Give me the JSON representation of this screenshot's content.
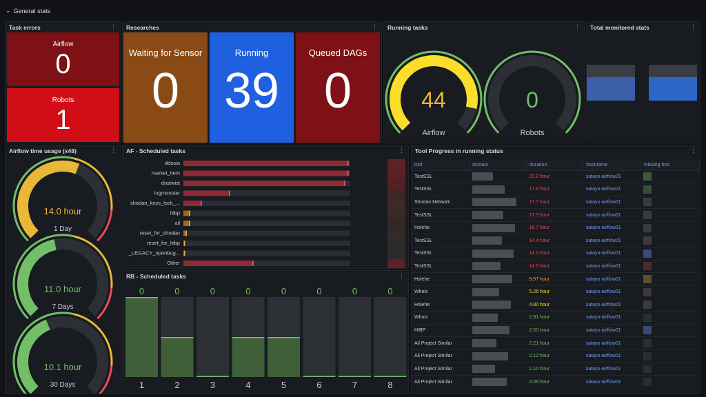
{
  "section": {
    "title": "General stats",
    "chevron": "⌄"
  },
  "menu_glyph": "⋮",
  "task_errors": {
    "title": "Task errors",
    "items": [
      {
        "label": "Airflow",
        "value": "0",
        "color": "#7d1115"
      },
      {
        "label": "Robots",
        "value": "1",
        "color": "#d10e16"
      }
    ]
  },
  "researches": {
    "title": "Researches",
    "items": [
      {
        "label": "Waiting for Sensor",
        "value": "0",
        "color": "#8a4a16"
      },
      {
        "label": "Running",
        "value": "39",
        "color": "#1f60e0"
      },
      {
        "label": "Queued DAGs",
        "value": "0",
        "color": "#7d1115"
      }
    ]
  },
  "running_tasks": {
    "title": "Running tasks",
    "gauges": [
      {
        "label": "Airflow",
        "value": "44",
        "fraction": 0.88,
        "color": "#fade2a",
        "valcolor": "#eab839"
      },
      {
        "label": "Robots",
        "value": "0",
        "fraction": 0.0,
        "color": "#73bf69",
        "valcolor": "#73bf69"
      }
    ]
  },
  "total_monitored": {
    "title": "Total monitored stats"
  },
  "airflow_time": {
    "title": "Airflow time usage (x48)",
    "gauges": [
      {
        "value": "14.0 hour",
        "label": "1 Day",
        "fraction": 0.58,
        "color": "#eab839"
      },
      {
        "value": "11.0 hour",
        "label": "7 Days",
        "fraction": 0.46,
        "color": "#73bf69"
      },
      {
        "value": "10.1 hour",
        "label": "30 Days",
        "fraction": 0.42,
        "color": "#73bf69"
      }
    ]
  },
  "af_scheduled": {
    "title": "AF - Scheduled tasks",
    "rows": [
      {
        "label": "ddosia",
        "fraction": 0.99
      },
      {
        "label": "market_item",
        "fraction": 0.99
      },
      {
        "label": "dnstwist",
        "fraction": 0.97
      },
      {
        "label": "logmonster",
        "fraction": 0.28
      },
      {
        "label": "shodan_keys_lock_...",
        "fraction": 0.11
      },
      {
        "label": "hibp",
        "fraction": 0.04
      },
      {
        "label": "ail",
        "fraction": 0.04
      },
      {
        "label": "reset_for_shodan",
        "fraction": 0.02
      },
      {
        "label": "reset_for_hibp",
        "fraction": 0.01
      },
      {
        "label": "_LEGACY_openbug...",
        "fraction": 0.01
      },
      {
        "label": "Other",
        "fraction": 0.42
      }
    ]
  },
  "rb_scheduled": {
    "title": "RB - Scheduled tasks",
    "bars": [
      {
        "label": "1",
        "value": "0",
        "fraction": 1.0
      },
      {
        "label": "2",
        "value": "0",
        "fraction": 0.5
      },
      {
        "label": "3",
        "value": "0",
        "fraction": 0.0
      },
      {
        "label": "4",
        "value": "0",
        "fraction": 0.5
      },
      {
        "label": "5",
        "value": "0",
        "fraction": 0.5
      },
      {
        "label": "6",
        "value": "0",
        "fraction": 0.0
      },
      {
        "label": "7",
        "value": "0",
        "fraction": 0.0
      },
      {
        "label": "8",
        "value": "0",
        "fraction": 0.0
      }
    ]
  },
  "tool_progress": {
    "title": "Tool Progress in running status",
    "columns": [
      "tool",
      "domain",
      "duration",
      "hostname",
      "missing fors"
    ],
    "rows": [
      {
        "tool": "TestSSL",
        "duration": "20.2 hour",
        "dcolor": "#f2495c",
        "host": "satayo-airflow01"
      },
      {
        "tool": "TestSSL",
        "duration": "17.9 hour",
        "dcolor": "#f2495c",
        "host": "satayo-airflow01"
      },
      {
        "tool": "Shodan Network",
        "duration": "17.7 hour",
        "dcolor": "#f2495c",
        "host": "satayo-airflow01"
      },
      {
        "tool": "TestSSL",
        "duration": "17.3 hour",
        "dcolor": "#f2495c",
        "host": "satayo-airflow01"
      },
      {
        "tool": "Holehe",
        "duration": "16.7 hour",
        "dcolor": "#f2495c",
        "host": "satayo-airflow01"
      },
      {
        "tool": "TestSSL",
        "duration": "14.4 hour",
        "dcolor": "#f2495c",
        "host": "satayo-airflow01"
      },
      {
        "tool": "TestSSL",
        "duration": "14.3 hour",
        "dcolor": "#f2495c",
        "host": "satayo-airflow01"
      },
      {
        "tool": "TestSSL",
        "duration": "14.0 hour",
        "dcolor": "#f2495c",
        "host": "satayo-airflow01"
      },
      {
        "tool": "Holehe",
        "duration": "9.97 hour",
        "dcolor": "#ff9830",
        "host": "satayo-airflow01"
      },
      {
        "tool": "Whois",
        "duration": "5.26 hour",
        "dcolor": "#fade2a",
        "host": "satayo-airflow01"
      },
      {
        "tool": "Holehe",
        "duration": "4.80 hour",
        "dcolor": "#fade2a",
        "host": "satayo-airflow01"
      },
      {
        "tool": "Whois",
        "duration": "2.91 hour",
        "dcolor": "#73bf69",
        "host": "satayo-airflow01"
      },
      {
        "tool": "HIBP",
        "duration": "2.50 hour",
        "dcolor": "#73bf69",
        "host": "satayo-airflow01"
      },
      {
        "tool": "Ail Project Similar",
        "duration": "2.21 hour",
        "dcolor": "#73bf69",
        "host": "satayo-airflow01"
      },
      {
        "tool": "Ail Project Similar",
        "duration": "2.12 hour",
        "dcolor": "#73bf69",
        "host": "satayo-airflow01"
      },
      {
        "tool": "Ail Project Similar",
        "duration": "2.10 hour",
        "dcolor": "#73bf69",
        "host": "satayo-airflow01"
      },
      {
        "tool": "Ail Project Similar",
        "duration": "2.09 hour",
        "dcolor": "#73bf69",
        "host": "satayo-airflow01"
      }
    ]
  }
}
